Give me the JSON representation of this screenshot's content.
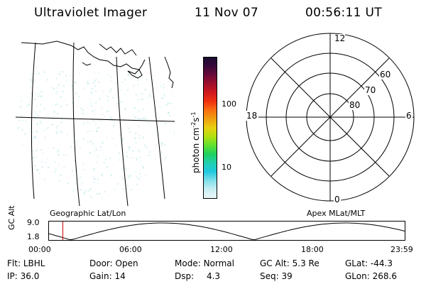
{
  "header": {
    "instrument": "Ultraviolet Imager",
    "date": "11 Nov 07",
    "time": "00:56:11 UT"
  },
  "maps": {
    "left_label": "Geographic Lat/Lon",
    "right_label": "Apex MLat/MLT"
  },
  "colorbar": {
    "unit_label": "photon cm",
    "unit_exp1": "-2",
    "unit_mid": "s",
    "unit_exp2": "-1",
    "ticks": [
      "100",
      "10"
    ],
    "scale": "log",
    "colors": [
      "#1a0a2e",
      "#3a0a3a",
      "#6a0a3a",
      "#a0102a",
      "#d01820",
      "#f03010",
      "#f87010",
      "#f0a010",
      "#e8d010",
      "#b0e010",
      "#60e030",
      "#20d060",
      "#20d0b0",
      "#20c8e0",
      "#80e0ea",
      "#c8eef2",
      "#eaf6f8"
    ]
  },
  "polar": {
    "mlt_labels": [
      "12",
      "18",
      "6",
      "0"
    ],
    "lat_labels": [
      "60",
      "70",
      "80"
    ]
  },
  "altitude_plot": {
    "ylabel": "GC Alt",
    "yticks": [
      "9.0",
      "1.8"
    ],
    "xticks": [
      "00:00",
      "06:00",
      "12:00",
      "18:00",
      "23:59"
    ],
    "marker_time": "00:56",
    "marker_color": "#cc0000"
  },
  "status": {
    "row1": [
      {
        "key": "Flt:",
        "val": "LBHL"
      },
      {
        "key": "Door:",
        "val": "Open"
      },
      {
        "key": "Mode:",
        "val": "Normal"
      },
      {
        "key": "GC Alt:",
        "val": "5.3 Re"
      },
      {
        "key": "GLat:",
        "val": "-44.3"
      }
    ],
    "row2": [
      {
        "key": "IP:",
        "val": "36.0"
      },
      {
        "key": "Gain:",
        "val": "14"
      },
      {
        "key": "Dsp:",
        "val": "4.3"
      },
      {
        "key": "Seq:",
        "val": "39"
      },
      {
        "key": "GLon:",
        "val": "268.6"
      }
    ]
  }
}
